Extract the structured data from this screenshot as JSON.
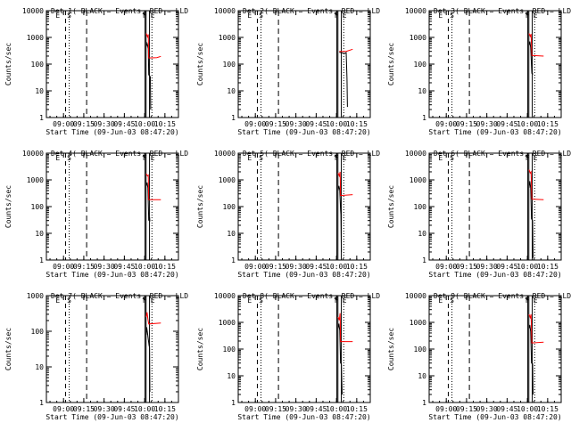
{
  "colors": {
    "events": "#000000",
    "lld": "#ff0000",
    "axes": "#000000",
    "background": "#ffffff"
  },
  "chart_data": [
    {
      "type": "line",
      "title": "Det 1( BLACK = Events, RED = LLD",
      "xlabel": "Start Time (09-Jun-03 08:47:20)",
      "ylabel": "Counts/sec",
      "xtick_labels": [
        "09:00",
        "09:15",
        "09:30",
        "09:45",
        "10:00",
        "10:15"
      ],
      "ytick_labels": [
        "1",
        "10",
        "100",
        "1000",
        "10000"
      ],
      "ylim": [
        1,
        10000
      ],
      "y_scale": "log",
      "marker_labels": [
        "E",
        "S",
        "F",
        "E"
      ],
      "series": [
        {
          "color": "black",
          "values": [
            [
              10.02,
              450
            ],
            [
              10.03,
              600
            ],
            [
              10.035,
              520
            ],
            [
              10.045,
              380
            ],
            [
              10.05,
              40
            ],
            [
              10.07,
              33
            ],
            [
              10.075,
              2
            ]
          ]
        },
        {
          "color": "red",
          "values": [
            [
              10.02,
              1400
            ],
            [
              10.035,
              1050
            ],
            [
              10.045,
              1300
            ],
            [
              10.05,
              170
            ],
            [
              10.15,
              175
            ],
            [
              10.2,
              195
            ]
          ]
        }
      ]
    },
    {
      "type": "line",
      "title": "Det 2( BLACK = Events, RED = LLD",
      "xlabel": "Start Time (09-Jun-03 08:47:20)",
      "ylabel": "Counts/sec",
      "xtick_labels": [
        "09:00",
        "09:15",
        "09:30",
        "09:45",
        "10:00",
        "10:15"
      ],
      "ytick_labels": [
        "1",
        "10",
        "100",
        "1000",
        "10000"
      ],
      "ylim": [
        1,
        10000
      ],
      "y_scale": "log",
      "marker_labels": [
        "E",
        "S",
        "F",
        "E"
      ],
      "series": [
        {
          "color": "black",
          "values": [
            [
              10.035,
              280
            ],
            [
              10.1,
              250
            ],
            [
              10.12,
              270
            ],
            [
              10.13,
              30
            ],
            [
              10.135,
              2.5
            ]
          ]
        },
        {
          "color": "red",
          "values": [
            [
              10.035,
              300
            ],
            [
              10.12,
              300
            ],
            [
              10.2,
              360
            ]
          ]
        }
      ]
    },
    {
      "type": "line",
      "title": "Det 3( BLACK = Events, RED = LLD",
      "xlabel": "Start Time (09-Jun-03 08:47:20)",
      "ylabel": "Counts/sec",
      "xtick_labels": [
        "09:00",
        "09:15",
        "09:30",
        "09:45",
        "10:00",
        "10:15"
      ],
      "ytick_labels": [
        "1",
        "10",
        "100",
        "1000",
        "10000"
      ],
      "ylim": [
        1,
        10000
      ],
      "y_scale": "log",
      "marker_labels": [
        "E",
        "S",
        "F",
        "E"
      ],
      "series": [
        {
          "color": "black",
          "values": [
            [
              10.02,
              500
            ],
            [
              10.03,
              700
            ],
            [
              10.04,
              420
            ],
            [
              10.055,
              45
            ],
            [
              10.07,
              42
            ]
          ]
        },
        {
          "color": "red",
          "values": [
            [
              10.02,
              1400
            ],
            [
              10.035,
              1100
            ],
            [
              10.045,
              1350
            ],
            [
              10.055,
              210
            ],
            [
              10.2,
              200
            ]
          ]
        }
      ]
    },
    {
      "type": "line",
      "title": "Det 4( BLACK = Events, RED = LLD",
      "xlabel": "Start Time (09-Jun-03 08:47:20)",
      "ylabel": "Counts/sec",
      "xtick_labels": [
        "09:00",
        "09:15",
        "09:30",
        "09:45",
        "10:00",
        "10:15"
      ],
      "ytick_labels": [
        "1",
        "10",
        "100",
        "1000",
        "10000"
      ],
      "ylim": [
        1,
        10000
      ],
      "y_scale": "log",
      "marker_labels": [
        "E",
        "S",
        "F",
        "E"
      ],
      "series": [
        {
          "color": "black",
          "values": [
            [
              10.02,
              600
            ],
            [
              10.03,
              800
            ],
            [
              10.04,
              500
            ],
            [
              10.05,
              30
            ],
            [
              10.06,
              40
            ],
            [
              10.065,
              28
            ]
          ]
        },
        {
          "color": "red",
          "values": [
            [
              10.02,
              1700
            ],
            [
              10.035,
              1400
            ],
            [
              10.045,
              1500
            ],
            [
              10.05,
              180
            ],
            [
              10.2,
              180
            ]
          ]
        }
      ]
    },
    {
      "type": "line",
      "title": "Det 5( BLACK = Events, RED = LLD",
      "xlabel": "Start Time (09-Jun-03 08:47:20)",
      "ylabel": "Counts/sec",
      "xtick_labels": [
        "09:00",
        "09:15",
        "09:30",
        "09:45",
        "10:00",
        "10:15"
      ],
      "ytick_labels": [
        "1",
        "10",
        "100",
        "1000",
        "10000"
      ],
      "ylim": [
        1,
        10000
      ],
      "y_scale": "log",
      "marker_labels": [
        "E",
        "S",
        "F",
        "E"
      ],
      "series": [
        {
          "color": "black",
          "values": [
            [
              10.02,
              400
            ],
            [
              10.03,
              600
            ],
            [
              10.04,
              420
            ],
            [
              10.05,
              80
            ],
            [
              10.055,
              50
            ],
            [
              10.06,
              2
            ]
          ]
        },
        {
          "color": "red",
          "values": [
            [
              10.02,
              1800
            ],
            [
              10.035,
              1400
            ],
            [
              10.045,
              2000
            ],
            [
              10.05,
              260
            ],
            [
              10.2,
              280
            ]
          ]
        }
      ]
    },
    {
      "type": "line",
      "title": "Det 6( BLACK = Events, RED = LLD",
      "xlabel": "Start Time (09-Jun-03 08:47:20)",
      "ylabel": "Counts/sec",
      "xtick_labels": [
        "09:00",
        "09:15",
        "09:30",
        "09:45",
        "10:00",
        "10:15"
      ],
      "ytick_labels": [
        "1",
        "10",
        "100",
        "1000",
        "10000"
      ],
      "ylim": [
        1,
        10000
      ],
      "y_scale": "log",
      "marker_labels": [
        "E",
        "S",
        "F",
        "E"
      ],
      "series": [
        {
          "color": "black",
          "values": [
            [
              10.02,
              500
            ],
            [
              10.03,
              900
            ],
            [
              10.04,
              500
            ],
            [
              10.05,
              35
            ],
            [
              10.065,
              30
            ],
            [
              10.07,
              1.2
            ]
          ]
        },
        {
          "color": "red",
          "values": [
            [
              10.02,
              2400
            ],
            [
              10.035,
              1800
            ],
            [
              10.045,
              2000
            ],
            [
              10.055,
              190
            ],
            [
              10.2,
              180
            ]
          ]
        }
      ]
    },
    {
      "type": "line",
      "title": "Det 7( BLACK = Events, RED = LLD",
      "xlabel": "Start Time (09-Jun-03 08:47:20)",
      "ylabel": "Counts/sec",
      "xtick_labels": [
        "09:00",
        "09:15",
        "09:30",
        "09:45",
        "10:00",
        "10:15"
      ],
      "ytick_labels": [
        "1",
        "10",
        "100",
        "1000"
      ],
      "ylim": [
        1,
        1000
      ],
      "y_scale": "log",
      "marker_labels": [
        "E",
        "S",
        "F",
        "E"
      ],
      "series": [
        {
          "color": "black",
          "values": [
            [
              10.02,
              80
            ],
            [
              10.025,
              130
            ],
            [
              10.035,
              90
            ],
            [
              10.045,
              60
            ],
            [
              10.055,
              40
            ],
            [
              10.06,
              35
            ],
            [
              10.065,
              2
            ]
          ]
        },
        {
          "color": "red",
          "values": [
            [
              10.02,
              250
            ],
            [
              10.03,
              340
            ],
            [
              10.04,
              220
            ],
            [
              10.05,
              160
            ],
            [
              10.2,
              170
            ]
          ]
        }
      ]
    },
    {
      "type": "line",
      "title": "Det 8( BLACK = Events, RED = LLD",
      "xlabel": "Start Time (09-Jun-03 08:47:20)",
      "ylabel": "Counts/sec",
      "xtick_labels": [
        "09:00",
        "09:15",
        "09:30",
        "09:45",
        "10:00",
        "10:15"
      ],
      "ytick_labels": [
        "1",
        "10",
        "100",
        "1000",
        "10000"
      ],
      "ylim": [
        1,
        10000
      ],
      "y_scale": "log",
      "marker_labels": [
        "E",
        "S",
        "F",
        "E"
      ],
      "series": [
        {
          "color": "black",
          "values": [
            [
              10.02,
              600
            ],
            [
              10.03,
              900
            ],
            [
              10.04,
              500
            ],
            [
              10.05,
              30
            ],
            [
              10.06,
              28
            ],
            [
              10.07,
              2
            ]
          ]
        },
        {
          "color": "red",
          "values": [
            [
              10.02,
              1600
            ],
            [
              10.035,
              1200
            ],
            [
              10.045,
              2200
            ],
            [
              10.05,
              190
            ],
            [
              10.2,
              190
            ]
          ]
        }
      ]
    },
    {
      "type": "line",
      "title": "Det 9( BLACK = Events, RED = LLD",
      "xlabel": "Start Time (09-Jun-03 08:47:20)",
      "ylabel": "Counts/sec",
      "xtick_labels": [
        "09:00",
        "09:15",
        "09:30",
        "09:45",
        "10:00",
        "10:15"
      ],
      "ytick_labels": [
        "1",
        "10",
        "100",
        "1000",
        "10000"
      ],
      "ylim": [
        1,
        10000
      ],
      "y_scale": "log",
      "marker_labels": [
        "E",
        "S",
        "F",
        "E"
      ],
      "series": [
        {
          "color": "black",
          "values": [
            [
              10.02,
              600
            ],
            [
              10.03,
              800
            ],
            [
              10.04,
              450
            ],
            [
              10.05,
              30
            ],
            [
              10.065,
              28
            ],
            [
              10.07,
              2
            ]
          ]
        },
        {
          "color": "red",
          "values": [
            [
              10.02,
              2000
            ],
            [
              10.035,
              1500
            ],
            [
              10.045,
              2000
            ],
            [
              10.055,
              170
            ],
            [
              10.2,
              180
            ]
          ]
        }
      ]
    }
  ]
}
